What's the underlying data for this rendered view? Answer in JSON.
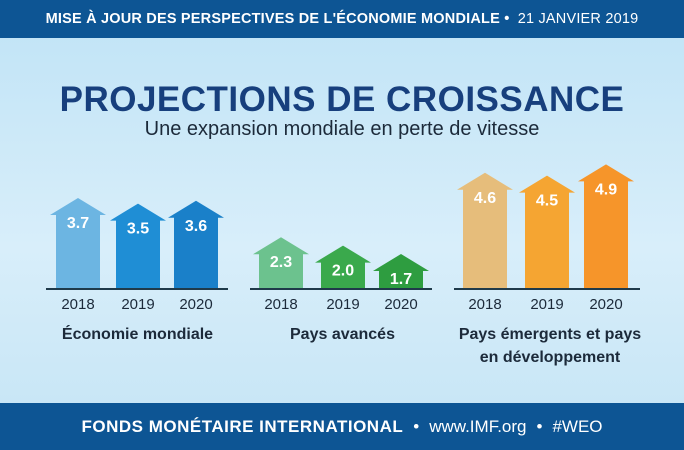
{
  "header": {
    "title": "MISE À JOUR DES PERSPECTIVES DE L'ÉCONOMIE MONDIALE",
    "separator": "•",
    "date": "21 JANVIER 2019"
  },
  "title": "PROJECTIONS DE CROISSANCE",
  "subtitle": "Une expansion mondiale en perte de vitesse",
  "chart_data": [
    {
      "type": "bar",
      "title": "Économie mondiale",
      "categories": [
        "2018",
        "2019",
        "2020"
      ],
      "values": [
        3.7,
        3.5,
        3.6
      ],
      "colors": [
        "#6cb5e2",
        "#1f8ed5",
        "#1a80c9"
      ]
    },
    {
      "type": "bar",
      "title": "Pays avancés",
      "categories": [
        "2018",
        "2019",
        "2020"
      ],
      "values": [
        2.3,
        2.0,
        1.7
      ],
      "colors": [
        "#6cc28e",
        "#3aa94c",
        "#2e9d40"
      ]
    },
    {
      "type": "bar",
      "title": "Pays émergents et pays en développement",
      "categories": [
        "2018",
        "2019",
        "2020"
      ],
      "values": [
        4.6,
        4.5,
        4.9
      ],
      "colors": [
        "#e6bd7b",
        "#f5a532",
        "#f6952a"
      ]
    }
  ],
  "footer": {
    "org": "FONDS MONÉTAIRE INTERNATIONAL",
    "dot": "•",
    "url": "www.IMF.org",
    "tag": "#WEO"
  }
}
